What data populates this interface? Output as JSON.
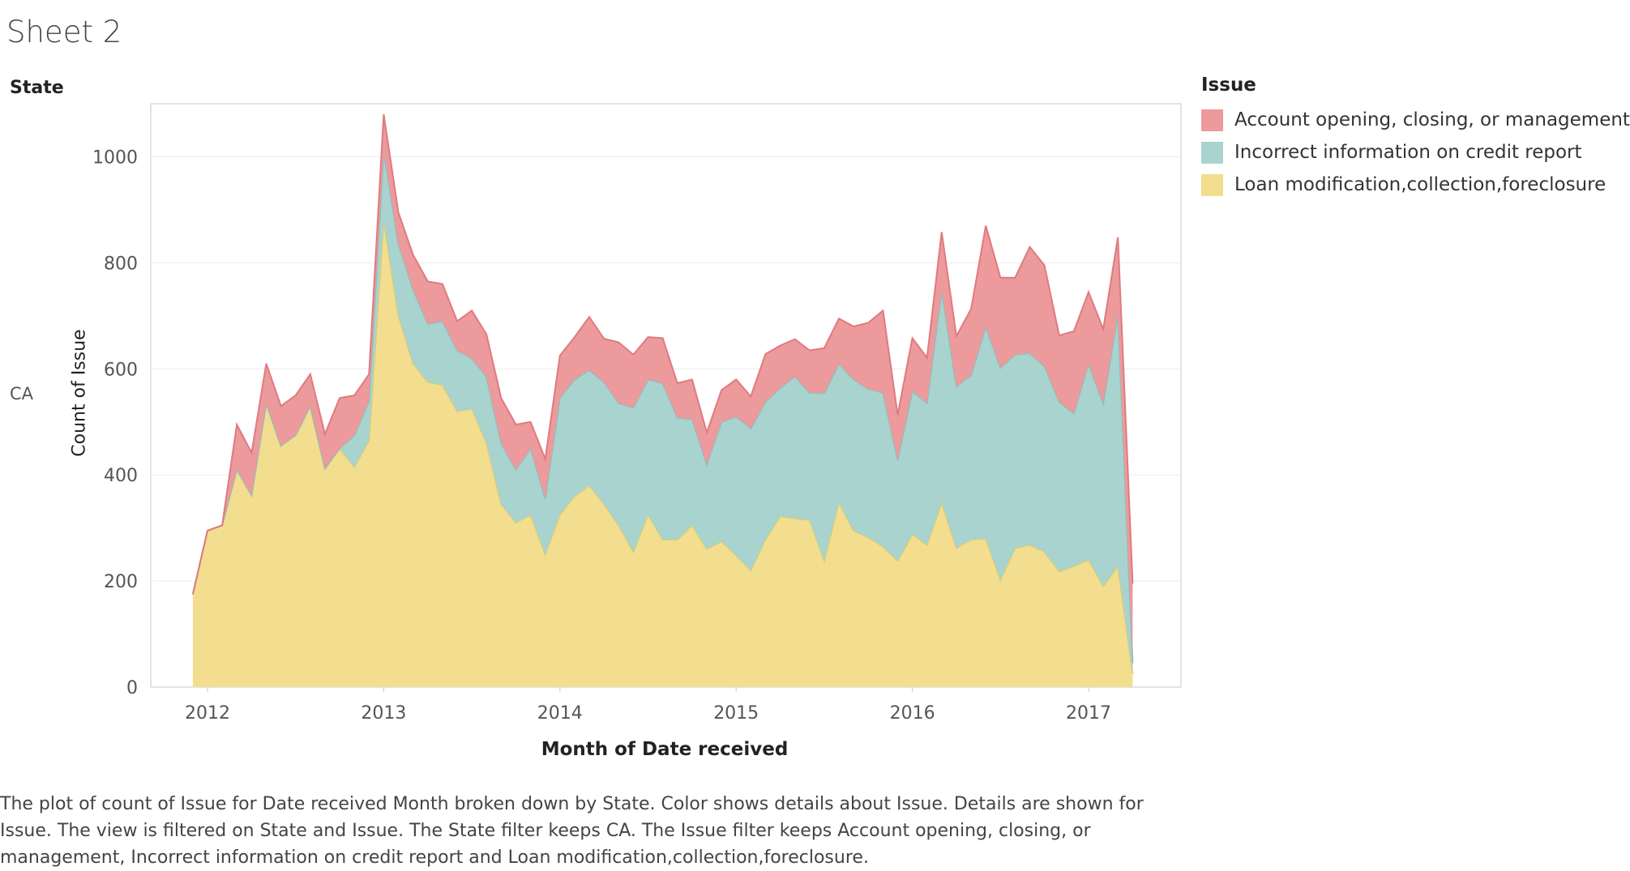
{
  "sheet_title": "Sheet 2",
  "state_header": "State",
  "row_label": "CA",
  "legend": {
    "title": "Issue",
    "items": [
      {
        "label": "Account opening, closing, or management",
        "color": "#ec9a9c"
      },
      {
        "label": "Incorrect information on credit report",
        "color": "#a8d3cf"
      },
      {
        "label": "Loan modification,collection,foreclosure",
        "color": "#f2de8e"
      }
    ]
  },
  "caption": "The plot of count of Issue for Date received Month broken down by State.  Color shows details about Issue.  Details are shown for Issue. The view is filtered on State and Issue. The State filter keeps CA. The Issue filter keeps Account opening, closing, or management, Incorrect information on credit report and Loan modification,collection,foreclosure.",
  "chart_data": {
    "type": "area",
    "stacked": true,
    "xlabel": "Month of Date received",
    "ylabel": "Count of Issue",
    "x_ticks": [
      "2012",
      "2013",
      "2014",
      "2015",
      "2016",
      "2017"
    ],
    "y_ticks": [
      0,
      200,
      400,
      600,
      800,
      1000
    ],
    "ylim": [
      0,
      1100
    ],
    "grid": true,
    "legend_position": "right",
    "x": [
      "2011-12",
      "2012-01",
      "2012-02",
      "2012-03",
      "2012-04",
      "2012-05",
      "2012-06",
      "2012-07",
      "2012-08",
      "2012-09",
      "2012-10",
      "2012-11",
      "2012-12",
      "2013-01",
      "2013-02",
      "2013-03",
      "2013-04",
      "2013-05",
      "2013-06",
      "2013-07",
      "2013-08",
      "2013-09",
      "2013-10",
      "2013-11",
      "2013-12",
      "2014-01",
      "2014-02",
      "2014-03",
      "2014-04",
      "2014-05",
      "2014-06",
      "2014-07",
      "2014-08",
      "2014-09",
      "2014-10",
      "2014-11",
      "2014-12",
      "2015-01",
      "2015-02",
      "2015-03",
      "2015-04",
      "2015-05",
      "2015-06",
      "2015-07",
      "2015-08",
      "2015-09",
      "2015-10",
      "2015-11",
      "2015-12",
      "2016-01",
      "2016-02",
      "2016-03",
      "2016-04",
      "2016-05",
      "2016-06",
      "2016-07",
      "2016-08",
      "2016-09",
      "2016-10",
      "2016-11",
      "2016-12",
      "2017-01",
      "2017-02",
      "2017-03",
      "2017-04"
    ],
    "series": [
      {
        "name": "Loan modification,collection,foreclosure",
        "color": "#f2de8e",
        "line": "#e3cc6e",
        "values": [
          175,
          295,
          305,
          410,
          362,
          535,
          455,
          475,
          530,
          412,
          450,
          415,
          465,
          880,
          700,
          610,
          575,
          570,
          520,
          525,
          460,
          345,
          310,
          325,
          250,
          325,
          360,
          380,
          345,
          305,
          255,
          325,
          278,
          278,
          305,
          260,
          275,
          248,
          220,
          278,
          322,
          318,
          315,
          238,
          348,
          295,
          282,
          265,
          238,
          288,
          268,
          348,
          262,
          278,
          280,
          202,
          262,
          268,
          255,
          218,
          228,
          240,
          190,
          228,
          25
        ]
      },
      {
        "name": "Incorrect information on credit report",
        "color": "#a8d3cf",
        "line": "#8cc0bb",
        "values": [
          0,
          0,
          0,
          0,
          0,
          0,
          0,
          0,
          0,
          0,
          0,
          60,
          75,
          130,
          135,
          140,
          110,
          120,
          115,
          95,
          125,
          115,
          100,
          125,
          105,
          220,
          220,
          218,
          230,
          230,
          272,
          255,
          295,
          230,
          200,
          160,
          225,
          262,
          268,
          260,
          242,
          268,
          240,
          316,
          262,
          285,
          280,
          290,
          190,
          270,
          268,
          400,
          305,
          310,
          400,
          400,
          365,
          362,
          350,
          320,
          288,
          370,
          345,
          475,
          20
        ]
      },
      {
        "name": "Account opening, closing, or management",
        "color": "#ec9a9c",
        "line": "#e07a80",
        "values": [
          0,
          0,
          0,
          85,
          80,
          75,
          75,
          75,
          60,
          65,
          95,
          75,
          50,
          70,
          60,
          65,
          80,
          70,
          55,
          90,
          80,
          85,
          85,
          50,
          75,
          80,
          80,
          100,
          82,
          115,
          100,
          80,
          85,
          65,
          75,
          60,
          60,
          70,
          60,
          90,
          80,
          70,
          80,
          85,
          85,
          100,
          125,
          155,
          85,
          100,
          85,
          110,
          95,
          125,
          190,
          170,
          145,
          200,
          190,
          125,
          155,
          135,
          140,
          145,
          150
        ]
      }
    ]
  }
}
